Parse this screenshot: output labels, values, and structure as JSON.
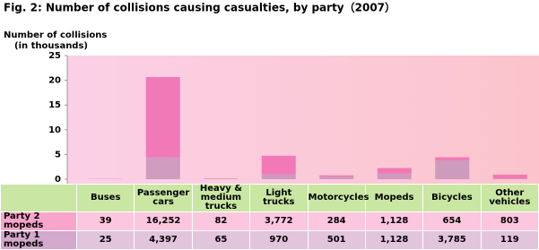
{
  "chart_data": {
    "type": "stacked-bar",
    "title": "Fig. 2: Number of collisions causing casualties, by party（2007）",
    "ylabel": [
      "Number of collisions",
      "(in thousands)"
    ],
    "categories": [
      "Buses",
      "Passenger cars",
      "Heavy & medium trucks",
      "Light trucks",
      "Motorcycles",
      "Mopeds",
      "Bicycles",
      "Other vehicles"
    ],
    "series": [
      {
        "name": "Party 2 mopeds",
        "color": "#f06ab0",
        "values": [
          0.039,
          16.252,
          0.082,
          3.772,
          0.284,
          1.128,
          0.654,
          0.803
        ],
        "value_labels": [
          "39",
          "16,252",
          "82",
          "3,772",
          "284",
          "1,128",
          "654",
          "803"
        ]
      },
      {
        "name": "Party 1 mopeds",
        "color": "#c493b8",
        "values": [
          0.025,
          4.397,
          0.065,
          0.97,
          0.501,
          1.128,
          3.785,
          0.119
        ],
        "value_labels": [
          "25",
          "4,397",
          "65",
          "970",
          "501",
          "1,128",
          "3,785",
          "119"
        ]
      }
    ],
    "ylim": [
      0,
      25
    ],
    "yticks": [
      0,
      5,
      10,
      15,
      20,
      25
    ],
    "grid": false
  }
}
